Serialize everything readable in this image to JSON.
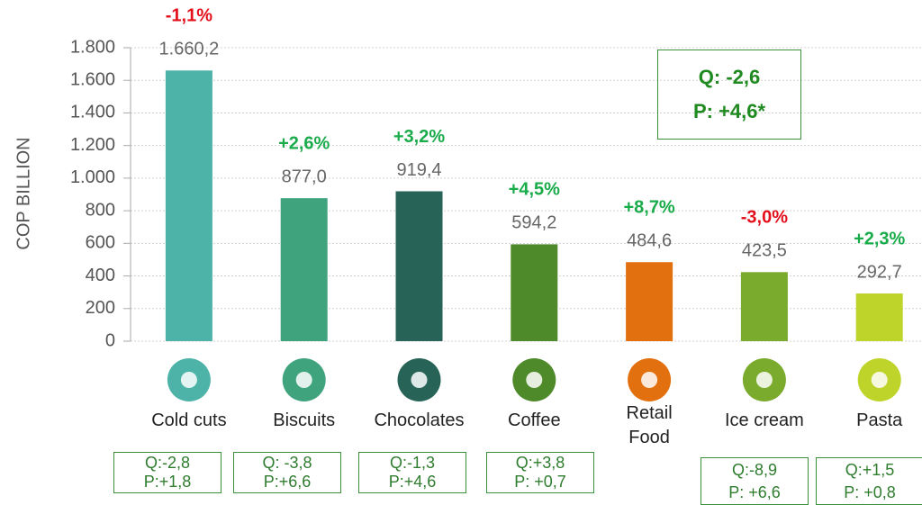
{
  "chart_data": {
    "type": "bar",
    "ylabel": "COP BILLION",
    "categories": [
      "Cold cuts",
      "Biscuits",
      "Chocolates",
      "Coffee",
      "Retail\nFood",
      "Ice cream",
      "Pasta"
    ],
    "values": [
      1660.2,
      877.0,
      919.4,
      594.2,
      484.6,
      423.5,
      292.7
    ],
    "value_labels": [
      "1.660,2",
      "877,0",
      "919,4",
      "594,2",
      "484,6",
      "423,5",
      "292,7"
    ],
    "colors": [
      "#4db3a8",
      "#3fa37e",
      "#276356",
      "#4f8a2a",
      "#e3700e",
      "#7aab2c",
      "#bfd42a"
    ],
    "changes": [
      "-1,1%",
      "+2,6%",
      "+3,2%",
      "+4,5%",
      "+8,7%",
      "-3,0%",
      "+2,3%"
    ],
    "change_colors": [
      "#e3101c",
      "#1aab4a",
      "#1aab4a",
      "#1aab4a",
      "#1aab4a",
      "#e3101c",
      "#1aab4a"
    ],
    "qp_boxes": [
      {
        "q": "Q:-2,8",
        "p": "P:+1,8"
      },
      {
        "q": "Q: -3,8",
        "p": "P:+6,6"
      },
      {
        "q": "Q:-1,3",
        "p": "P:+4,6"
      },
      {
        "q": "Q:+3,8",
        "p": "P: +0,7"
      },
      null,
      {
        "q": "Q:-8,9",
        "p": "P: +6,6"
      },
      {
        "q": "Q:+1,5",
        "p": "P: +0,8"
      }
    ],
    "annotation": {
      "q": "Q: -2,6",
      "p": "P: +4,6*"
    },
    "ylim": [
      0,
      1800
    ],
    "yticks": [
      0,
      200,
      400,
      600,
      800,
      {
        "value": 1000,
        "label": "1.000"
      },
      {
        "value": 1200,
        "label": "1.200"
      },
      {
        "value": 1400,
        "label": "1.400"
      },
      {
        "value": 1600,
        "label": "1.600"
      },
      {
        "value": 1800,
        "label": "1.800"
      }
    ],
    "grid": true
  }
}
